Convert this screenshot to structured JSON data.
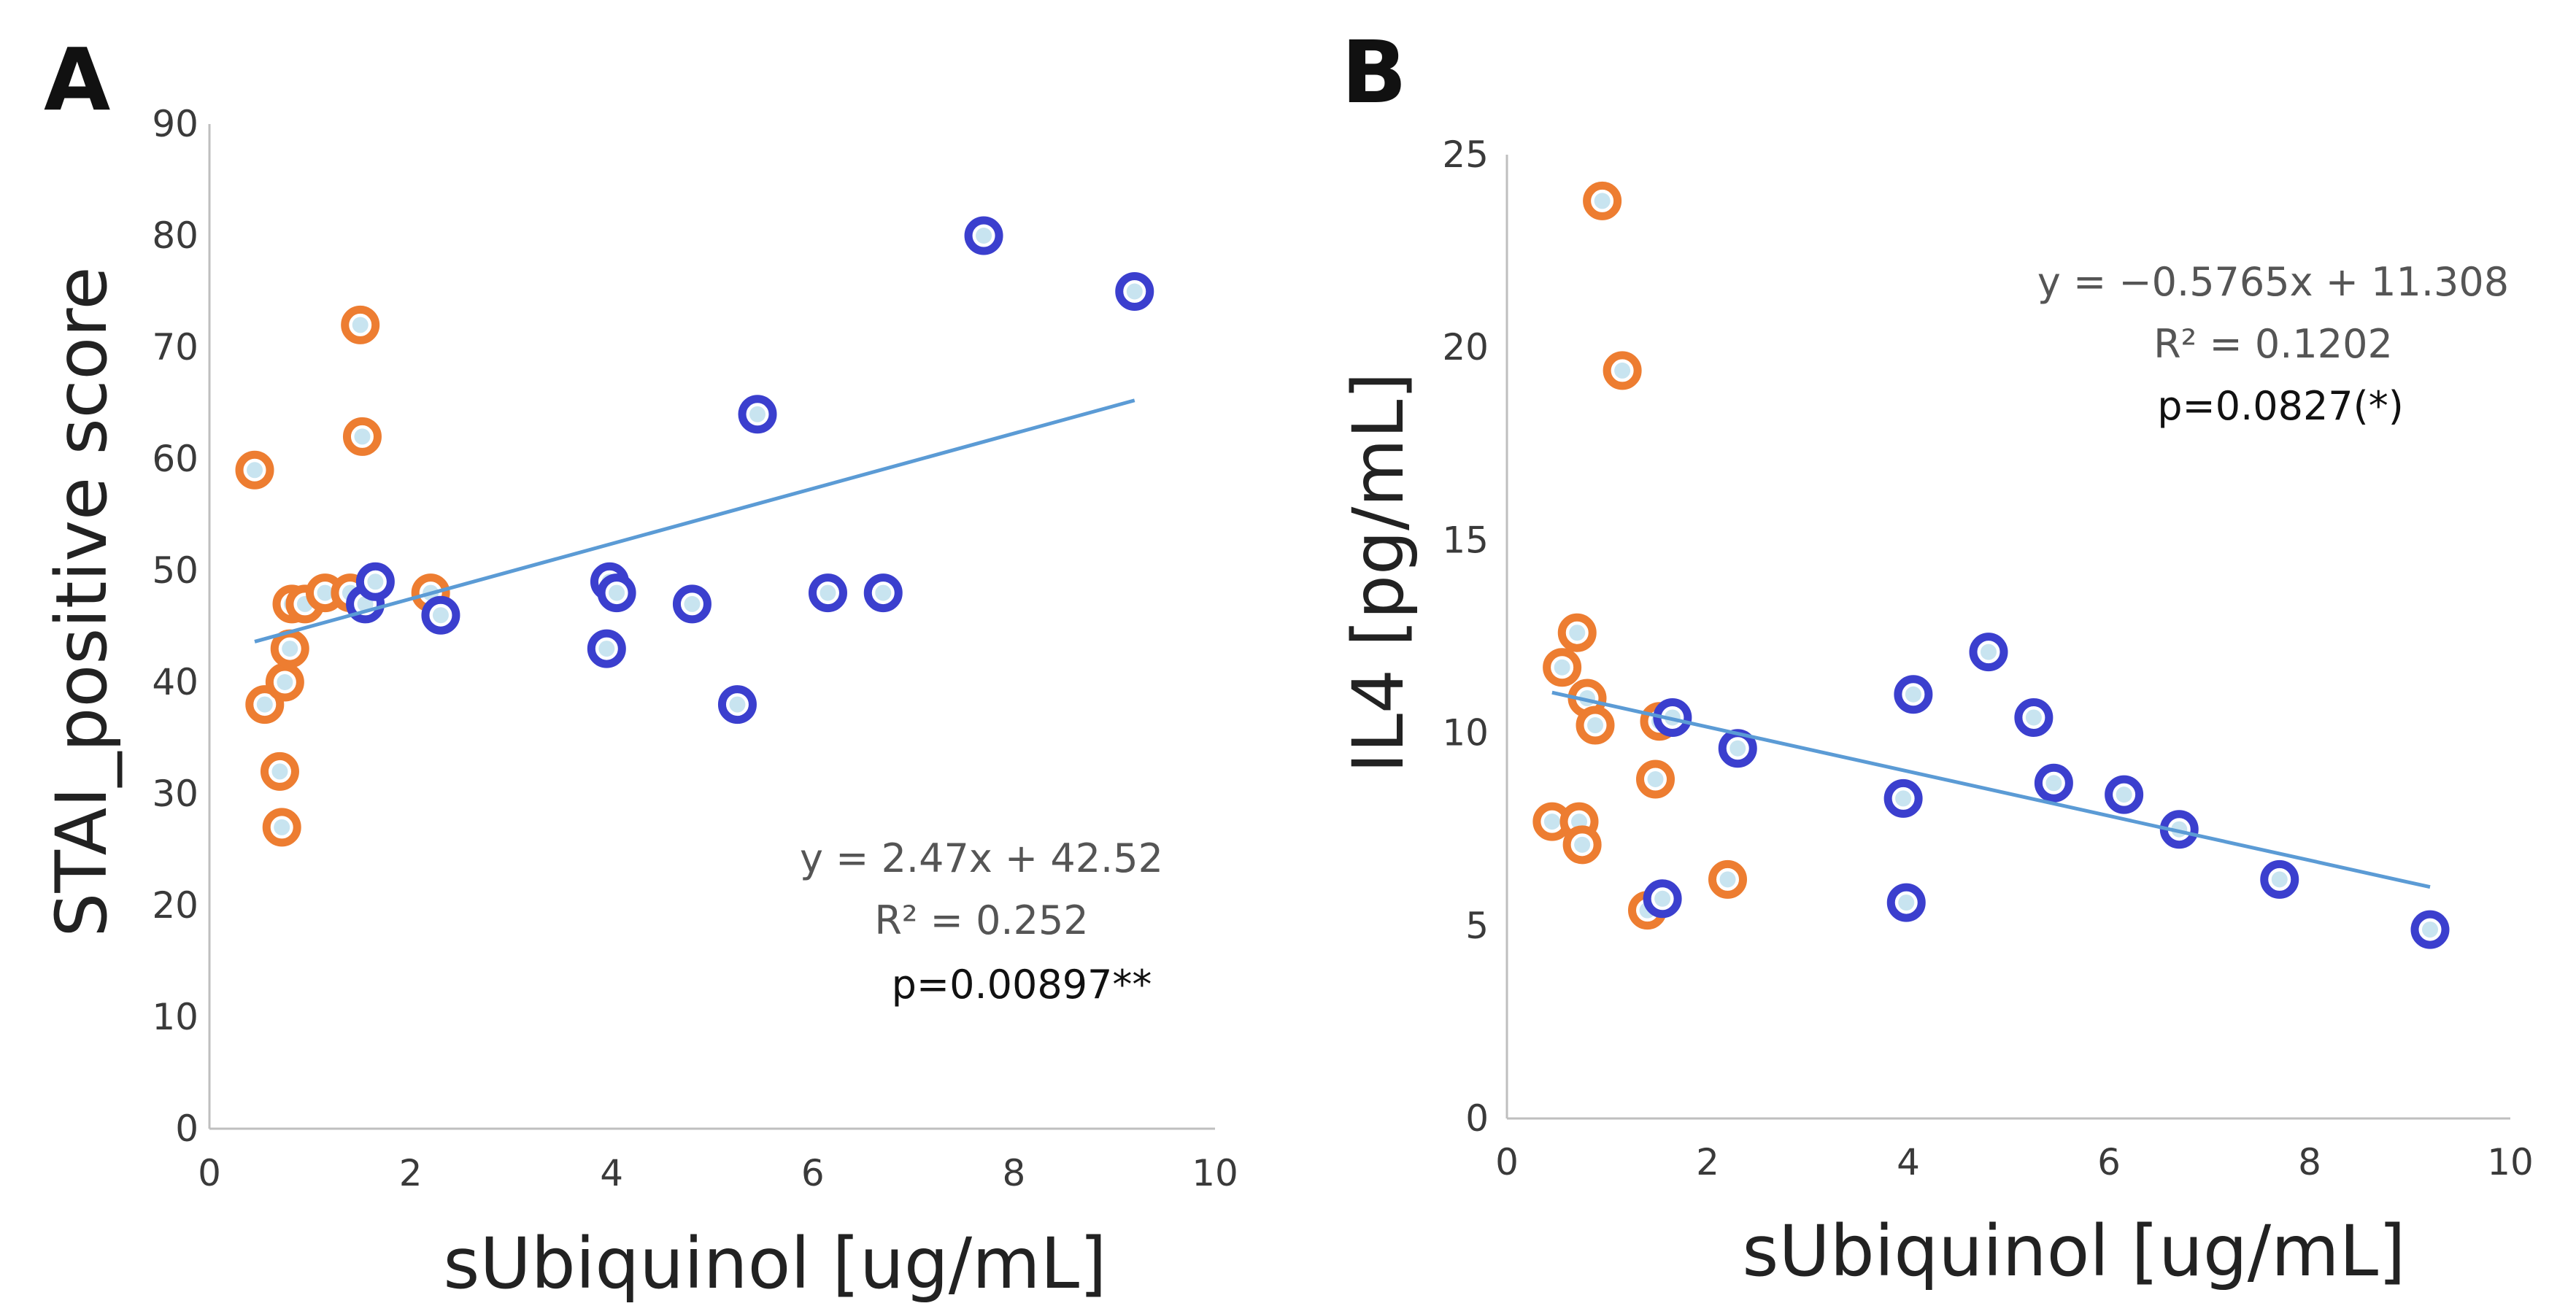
{
  "colors": {
    "orange": "#ED7D31",
    "blue": "#3B3FCE",
    "center_light": "#C8E4F0",
    "trend": "#5B9BD5",
    "axis": "#BFBFBF"
  },
  "chart_data": [
    {
      "type": "scatter",
      "panel_label": "A",
      "xlabel": "sUbiquinol [ug/mL]",
      "ylabel": "STAI_positive score",
      "xlim": [
        0,
        10
      ],
      "ylim": [
        0,
        90
      ],
      "x_ticks": [
        "0",
        "2",
        "4",
        "6",
        "8",
        "10"
      ],
      "y_ticks": [
        "0",
        "10",
        "20",
        "30",
        "40",
        "50",
        "60",
        "70",
        "80",
        "90"
      ],
      "annotations": [
        "y = 2.47x + 42.52",
        "R² = 0.252",
        "p=0.00897**"
      ],
      "trendline": {
        "slope": 2.47,
        "intercept": 42.52,
        "x_range": [
          0.45,
          9.2
        ]
      },
      "series": [
        {
          "color": "orange",
          "points": [
            [
              0.45,
              59
            ],
            [
              0.55,
              38
            ],
            [
              0.7,
              32
            ],
            [
              0.72,
              27
            ],
            [
              0.75,
              40
            ],
            [
              0.8,
              43
            ],
            [
              0.82,
              47
            ],
            [
              0.95,
              47
            ],
            [
              1.15,
              48
            ],
            [
              1.4,
              48
            ],
            [
              1.5,
              72
            ],
            [
              1.52,
              62
            ],
            [
              2.2,
              48
            ]
          ]
        },
        {
          "color": "blue",
          "points": [
            [
              1.55,
              47
            ],
            [
              1.65,
              49
            ],
            [
              2.3,
              46
            ],
            [
              3.95,
              43
            ],
            [
              3.98,
              49
            ],
            [
              4.05,
              48
            ],
            [
              4.8,
              47
            ],
            [
              5.25,
              38
            ],
            [
              5.45,
              64
            ],
            [
              6.15,
              48
            ],
            [
              6.7,
              48
            ],
            [
              7.7,
              80
            ],
            [
              9.2,
              75
            ]
          ]
        }
      ]
    },
    {
      "type": "scatter",
      "panel_label": "B",
      "xlabel": "sUbiquinol [ug/mL]",
      "ylabel": "IL4 [pg/mL]",
      "xlim": [
        0,
        10
      ],
      "ylim": [
        0,
        25
      ],
      "x_ticks": [
        "0",
        "2",
        "4",
        "6",
        "8",
        "10"
      ],
      "y_ticks": [
        "0",
        "5",
        "10",
        "15",
        "20",
        "25"
      ],
      "annotations": [
        "y = −0.5765x + 11.308",
        "R² = 0.1202",
        "p=0.0827(*)"
      ],
      "trendline": {
        "slope": -0.5765,
        "intercept": 11.308,
        "x_range": [
          0.45,
          9.2
        ]
      },
      "series": [
        {
          "color": "orange",
          "points": [
            [
              0.45,
              7.7
            ],
            [
              0.55,
              11.7
            ],
            [
              0.7,
              12.6
            ],
            [
              0.72,
              7.7
            ],
            [
              0.75,
              7.1
            ],
            [
              0.8,
              10.9
            ],
            [
              0.88,
              10.2
            ],
            [
              0.95,
              23.8
            ],
            [
              1.15,
              19.4
            ],
            [
              1.4,
              5.4
            ],
            [
              1.48,
              8.8
            ],
            [
              1.52,
              10.3
            ],
            [
              2.2,
              6.2
            ]
          ]
        },
        {
          "color": "blue",
          "points": [
            [
              1.55,
              5.7
            ],
            [
              1.65,
              10.4
            ],
            [
              2.3,
              9.6
            ],
            [
              3.95,
              8.3
            ],
            [
              3.98,
              5.6
            ],
            [
              4.05,
              11
            ],
            [
              4.8,
              12.1
            ],
            [
              5.25,
              10.4
            ],
            [
              5.45,
              8.7
            ],
            [
              6.15,
              8.4
            ],
            [
              6.7,
              7.5
            ],
            [
              7.7,
              6.2
            ],
            [
              9.2,
              4.9
            ]
          ]
        }
      ]
    }
  ]
}
